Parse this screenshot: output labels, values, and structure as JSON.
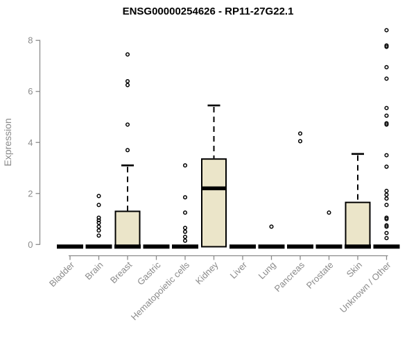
{
  "chart_data": {
    "type": "boxplot",
    "title": "ENSG00000254626 - RP11-27G22.1",
    "ylabel": "Expression",
    "xlabel": "",
    "ylim": [
      0,
      8.6
    ],
    "yticks": [
      0,
      2,
      4,
      6,
      8
    ],
    "grid": false,
    "legend_position": "none",
    "categories": [
      "Bladder",
      "Brain",
      "Breast",
      "Gastric",
      "Hematopoietic cells",
      "Kidney",
      "Liver",
      "Lung",
      "Pancreas",
      "Prostate",
      "Skin",
      "Unknown / Other"
    ],
    "series": [
      {
        "category": "Bladder",
        "q1": 0,
        "median": 0,
        "q3": 0,
        "whisker_low": 0,
        "whisker_high": 0,
        "outliers": []
      },
      {
        "category": "Brain",
        "q1": 0,
        "median": 0,
        "q3": 0,
        "whisker_low": 0,
        "whisker_high": 0,
        "outliers": [
          1.9,
          1.55,
          1.05,
          0.95,
          0.85,
          0.7,
          0.55,
          0.35
        ]
      },
      {
        "category": "Breast",
        "q1": 0,
        "median": 0,
        "q3": 1.3,
        "whisker_low": 0,
        "whisker_high": 3.1,
        "outliers": [
          7.45,
          6.4,
          6.25,
          4.7,
          3.7
        ]
      },
      {
        "category": "Gastric",
        "q1": 0,
        "median": 0,
        "q3": 0,
        "whisker_low": 0,
        "whisker_high": 0,
        "outliers": []
      },
      {
        "category": "Hematopoietic cells",
        "q1": 0,
        "median": 0,
        "q3": 0,
        "whisker_low": 0,
        "whisker_high": 0,
        "outliers": [
          3.1,
          1.85,
          1.25,
          0.65,
          0.5,
          0.3,
          0.15
        ]
      },
      {
        "category": "Kidney",
        "q1": 0,
        "median": 2.2,
        "q3": 3.35,
        "whisker_low": 0,
        "whisker_high": 5.45,
        "outliers": []
      },
      {
        "category": "Liver",
        "q1": 0,
        "median": 0,
        "q3": 0,
        "whisker_low": 0,
        "whisker_high": 0,
        "outliers": []
      },
      {
        "category": "Lung",
        "q1": 0,
        "median": 0,
        "q3": 0,
        "whisker_low": 0,
        "whisker_high": 0,
        "outliers": [
          0.7
        ]
      },
      {
        "category": "Pancreas",
        "q1": 0,
        "median": 0,
        "q3": 0,
        "whisker_low": 0,
        "whisker_high": 0,
        "outliers": [
          4.35,
          4.05
        ]
      },
      {
        "category": "Prostate",
        "q1": 0,
        "median": 0,
        "q3": 0,
        "whisker_low": 0,
        "whisker_high": 0,
        "outliers": [
          1.25
        ]
      },
      {
        "category": "Skin",
        "q1": 0,
        "median": 0,
        "q3": 1.65,
        "whisker_low": 0,
        "whisker_high": 3.55,
        "outliers": []
      },
      {
        "category": "Unknown / Other",
        "q1": 0,
        "median": 0,
        "q3": 0,
        "whisker_low": 0,
        "whisker_high": 0,
        "outliers": [
          8.4,
          7.8,
          7.75,
          6.95,
          6.5,
          5.35,
          5.05,
          4.75,
          4.7,
          3.5,
          3.05,
          2.1,
          1.95,
          1.8,
          1.55,
          1.05,
          1.0,
          0.75,
          0.7,
          0.45,
          0.25
        ]
      }
    ],
    "colors": {
      "box_fill": "#EBE5C9",
      "box_border": "#000000",
      "median": "#000000",
      "whisker": "#000000",
      "outlier": "#000000",
      "axis": "#8a8a8a",
      "tick_label": "#8a8a8a",
      "title": "#000000",
      "background": "#ffffff"
    }
  }
}
